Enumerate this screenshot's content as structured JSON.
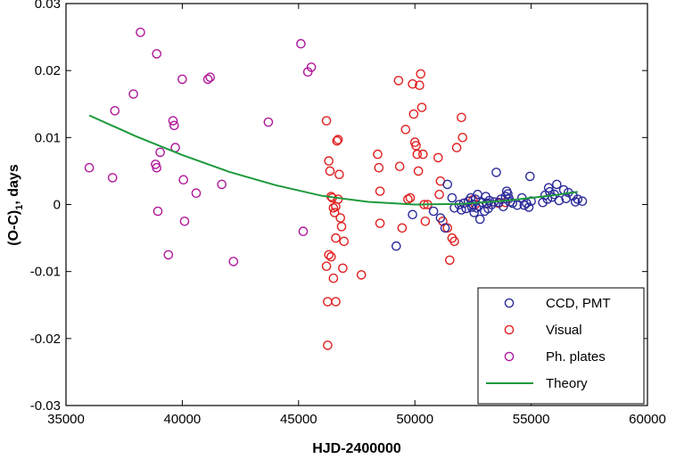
{
  "chart_data": {
    "type": "scatter",
    "xlabel": "HJD-2400000",
    "ylabel_main": "(O-C)",
    "ylabel_sub": "1",
    "ylabel_tail": ", days",
    "xlim": [
      35000,
      60000
    ],
    "ylim": [
      -0.03,
      0.03
    ],
    "xticks": [
      35000,
      40000,
      45000,
      50000,
      55000,
      60000
    ],
    "xtick_labels": [
      "35000",
      "40000",
      "45000",
      "50000",
      "55000",
      "60000"
    ],
    "yticks": [
      -0.03,
      -0.02,
      -0.01,
      0,
      0.01,
      0.02,
      0.03
    ],
    "ytick_labels": [
      "-0.03",
      "-0.02",
      "-0.01",
      "0",
      "0.01",
      "0.02",
      "0.03"
    ],
    "grid": false,
    "legend_position": "bottom-right",
    "series": [
      {
        "name": "CCD, PMT",
        "marker": "open-circle",
        "color": "#2b2b9a",
        "points": [
          [
            49200,
            -0.0062
          ],
          [
            49900,
            -0.0015
          ],
          [
            50800,
            -0.001
          ],
          [
            51100,
            -0.002
          ],
          [
            51300,
            -0.0035
          ],
          [
            51400,
            0.003
          ],
          [
            51600,
            0.001
          ],
          [
            51700,
            -0.0005
          ],
          [
            51900,
            0.0
          ],
          [
            52000,
            -0.0008
          ],
          [
            52100,
            0.0002
          ],
          [
            52200,
            -0.0006
          ],
          [
            52300,
            0.0005
          ],
          [
            52400,
            0.001
          ],
          [
            52450,
            -0.0004
          ],
          [
            52500,
            0.0
          ],
          [
            52550,
            -0.0012
          ],
          [
            52600,
            0.0008
          ],
          [
            52650,
            -0.0005
          ],
          [
            52700,
            0.0015
          ],
          [
            52750,
            -0.0002
          ],
          [
            52800,
            -0.0022
          ],
          [
            52900,
            0.0003
          ],
          [
            53000,
            -0.001
          ],
          [
            53050,
            0.0012
          ],
          [
            53100,
            0.0002
          ],
          [
            53150,
            -0.0006
          ],
          [
            53200,
            0.0006
          ],
          [
            53300,
            0.0
          ],
          [
            53400,
            0.0004
          ],
          [
            53500,
            0.0048
          ],
          [
            53600,
            0.0003
          ],
          [
            53700,
            0.0008
          ],
          [
            53800,
            -0.0003
          ],
          [
            53900,
            0.0012
          ],
          [
            53950,
            0.002
          ],
          [
            54000,
            0.0016
          ],
          [
            54050,
            0.0009
          ],
          [
            54100,
            0.0004
          ],
          [
            54200,
            0.0002
          ],
          [
            54400,
            -0.0001
          ],
          [
            54600,
            0.001
          ],
          [
            54700,
            -0.0001
          ],
          [
            54800,
            0.0002
          ],
          [
            54900,
            -0.0004
          ],
          [
            54950,
            0.0042
          ],
          [
            55000,
            0.0005
          ],
          [
            55500,
            0.0003
          ],
          [
            55600,
            0.0014
          ],
          [
            55700,
            0.0008
          ],
          [
            55750,
            0.0025
          ],
          [
            55800,
            0.0019
          ],
          [
            55900,
            0.0011
          ],
          [
            56000,
            0.0015
          ],
          [
            56100,
            0.003
          ],
          [
            56200,
            0.0006
          ],
          [
            56400,
            0.0022
          ],
          [
            56500,
            0.0009
          ],
          [
            56600,
            0.0018
          ],
          [
            56800,
            0.0013
          ],
          [
            56900,
            0.0004
          ],
          [
            57000,
            0.0008
          ],
          [
            57200,
            0.0005
          ]
        ]
      },
      {
        "name": "Visual",
        "marker": "open-circle",
        "color": "#e02020",
        "points": [
          [
            46200,
            0.0125
          ],
          [
            46300,
            0.0065
          ],
          [
            46350,
            0.005
          ],
          [
            46400,
            0.0012
          ],
          [
            46450,
            0.001
          ],
          [
            46500,
            -0.0005
          ],
          [
            46550,
            -0.0012
          ],
          [
            46600,
            -0.0003
          ],
          [
            46700,
            0.0008
          ],
          [
            46200,
            -0.0092
          ],
          [
            46300,
            -0.0075
          ],
          [
            46400,
            -0.0078
          ],
          [
            46500,
            -0.011
          ],
          [
            46600,
            -0.005
          ],
          [
            46650,
            0.0095
          ],
          [
            46700,
            0.0097
          ],
          [
            46750,
            0.0045
          ],
          [
            46800,
            -0.002
          ],
          [
            46850,
            -0.0033
          ],
          [
            46900,
            -0.0095
          ],
          [
            46950,
            -0.0055
          ],
          [
            46250,
            -0.0145
          ],
          [
            46600,
            -0.0145
          ],
          [
            46250,
            -0.021
          ],
          [
            47700,
            -0.0105
          ],
          [
            48400,
            0.0075
          ],
          [
            48450,
            0.0055
          ],
          [
            48500,
            -0.0028
          ],
          [
            48500,
            0.002
          ],
          [
            49300,
            0.0185
          ],
          [
            49350,
            0.0057
          ],
          [
            49450,
            -0.0035
          ],
          [
            49600,
            0.0112
          ],
          [
            49700,
            0.0008
          ],
          [
            49800,
            0.001
          ],
          [
            49900,
            0.018
          ],
          [
            49950,
            0.0135
          ],
          [
            50000,
            0.0093
          ],
          [
            50050,
            0.0088
          ],
          [
            50100,
            0.0075
          ],
          [
            50150,
            0.005
          ],
          [
            50200,
            0.0178
          ],
          [
            50250,
            0.0195
          ],
          [
            50300,
            0.0145
          ],
          [
            50350,
            0.0075
          ],
          [
            50400,
            0.0
          ],
          [
            50450,
            -0.0025
          ],
          [
            50550,
            0.0
          ],
          [
            51000,
            0.007
          ],
          [
            51050,
            0.0015
          ],
          [
            51100,
            0.0035
          ],
          [
            51200,
            -0.0025
          ],
          [
            51400,
            -0.0035
          ],
          [
            51500,
            -0.0083
          ],
          [
            51600,
            -0.005
          ],
          [
            51700,
            -0.0055
          ],
          [
            51800,
            0.0085
          ],
          [
            52000,
            0.013
          ],
          [
            52050,
            0.01
          ],
          [
            52100,
            0.0002
          ],
          [
            52500,
            0.0007
          ],
          [
            52600,
            0.0
          ],
          [
            53100,
            0.0001
          ],
          [
            53600,
            0.0002
          ],
          [
            53900,
            0.0003
          ]
        ]
      },
      {
        "name": "Ph. plates",
        "marker": "open-circle",
        "color": "#b0189a",
        "points": [
          [
            36000,
            0.0055
          ],
          [
            37000,
            0.004
          ],
          [
            37100,
            0.014
          ],
          [
            37900,
            0.0165
          ],
          [
            38200,
            0.0257
          ],
          [
            38900,
            0.0225
          ],
          [
            38850,
            0.006
          ],
          [
            38900,
            0.0055
          ],
          [
            38950,
            -0.001
          ],
          [
            39050,
            0.0078
          ],
          [
            39400,
            -0.0075
          ],
          [
            39600,
            0.0125
          ],
          [
            39650,
            0.0118
          ],
          [
            39700,
            0.0085
          ],
          [
            40000,
            0.0187
          ],
          [
            40050,
            0.0037
          ],
          [
            40100,
            -0.0025
          ],
          [
            40600,
            0.0017
          ],
          [
            41100,
            0.0187
          ],
          [
            41200,
            0.019
          ],
          [
            41700,
            0.003
          ],
          [
            42200,
            -0.0085
          ],
          [
            43700,
            0.0123
          ],
          [
            45100,
            0.024
          ],
          [
            45200,
            -0.004
          ],
          [
            45400,
            0.0198
          ],
          [
            45550,
            0.0205
          ]
        ]
      },
      {
        "name": "Theory",
        "marker": "line",
        "color": "#1d9a3c",
        "points": [
          [
            36000,
            0.0133
          ],
          [
            38000,
            0.0102
          ],
          [
            40000,
            0.0074
          ],
          [
            42000,
            0.0049
          ],
          [
            44000,
            0.0029
          ],
          [
            46000,
            0.0013
          ],
          [
            48000,
            0.0004
          ],
          [
            50000,
            0.0
          ],
          [
            52000,
            0.0001
          ],
          [
            54000,
            0.0006
          ],
          [
            56000,
            0.0014
          ],
          [
            57000,
            0.0019
          ]
        ]
      }
    ]
  }
}
